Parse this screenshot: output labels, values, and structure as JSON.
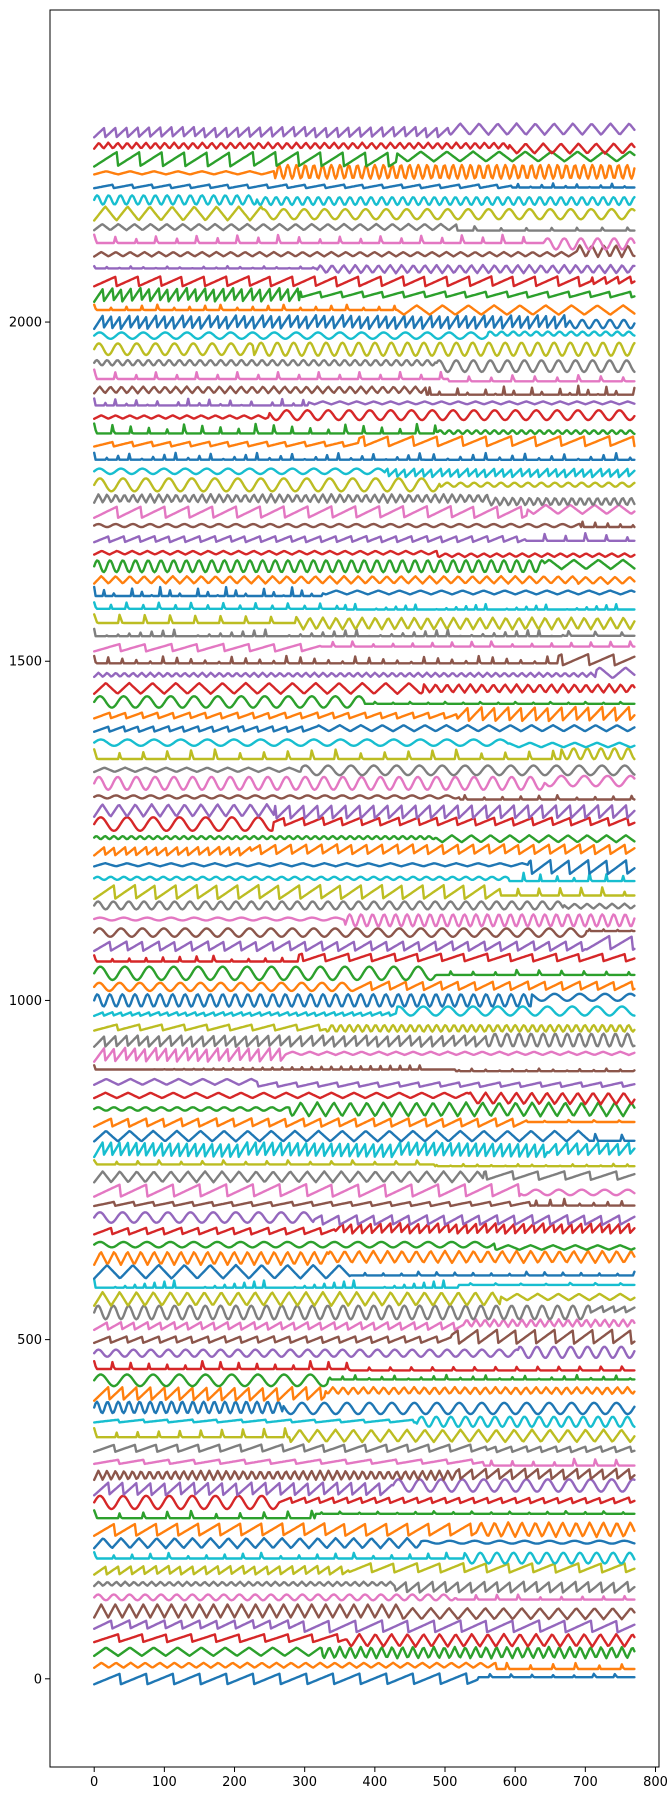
{
  "chart_data": {
    "type": "line",
    "title": "",
    "xlabel": "",
    "ylabel": "",
    "xlim": [
      -63,
      805
    ],
    "ylim": [
      -130,
      2460
    ],
    "x_ticks": [
      0,
      100,
      200,
      300,
      400,
      500,
      600,
      700,
      800
    ],
    "y_ticks": [
      0,
      500,
      1000,
      1500,
      2000
    ],
    "grid": false,
    "legend": "none",
    "n_series": 115,
    "series_spacing": 20,
    "x_range": [
      0,
      770
    ],
    "color_cycle": [
      "#1f77b4",
      "#ff7f0e",
      "#2ca02c",
      "#d62728",
      "#9467bd",
      "#8c564b",
      "#e377c2",
      "#7f7f7f",
      "#bcbd22",
      "#17becf"
    ],
    "note_series": "115 stacked oscillating traces, trace i offset vertically by 20*i; each trace switches waveform (sine / sawtooth / spike) at a change point"
  }
}
